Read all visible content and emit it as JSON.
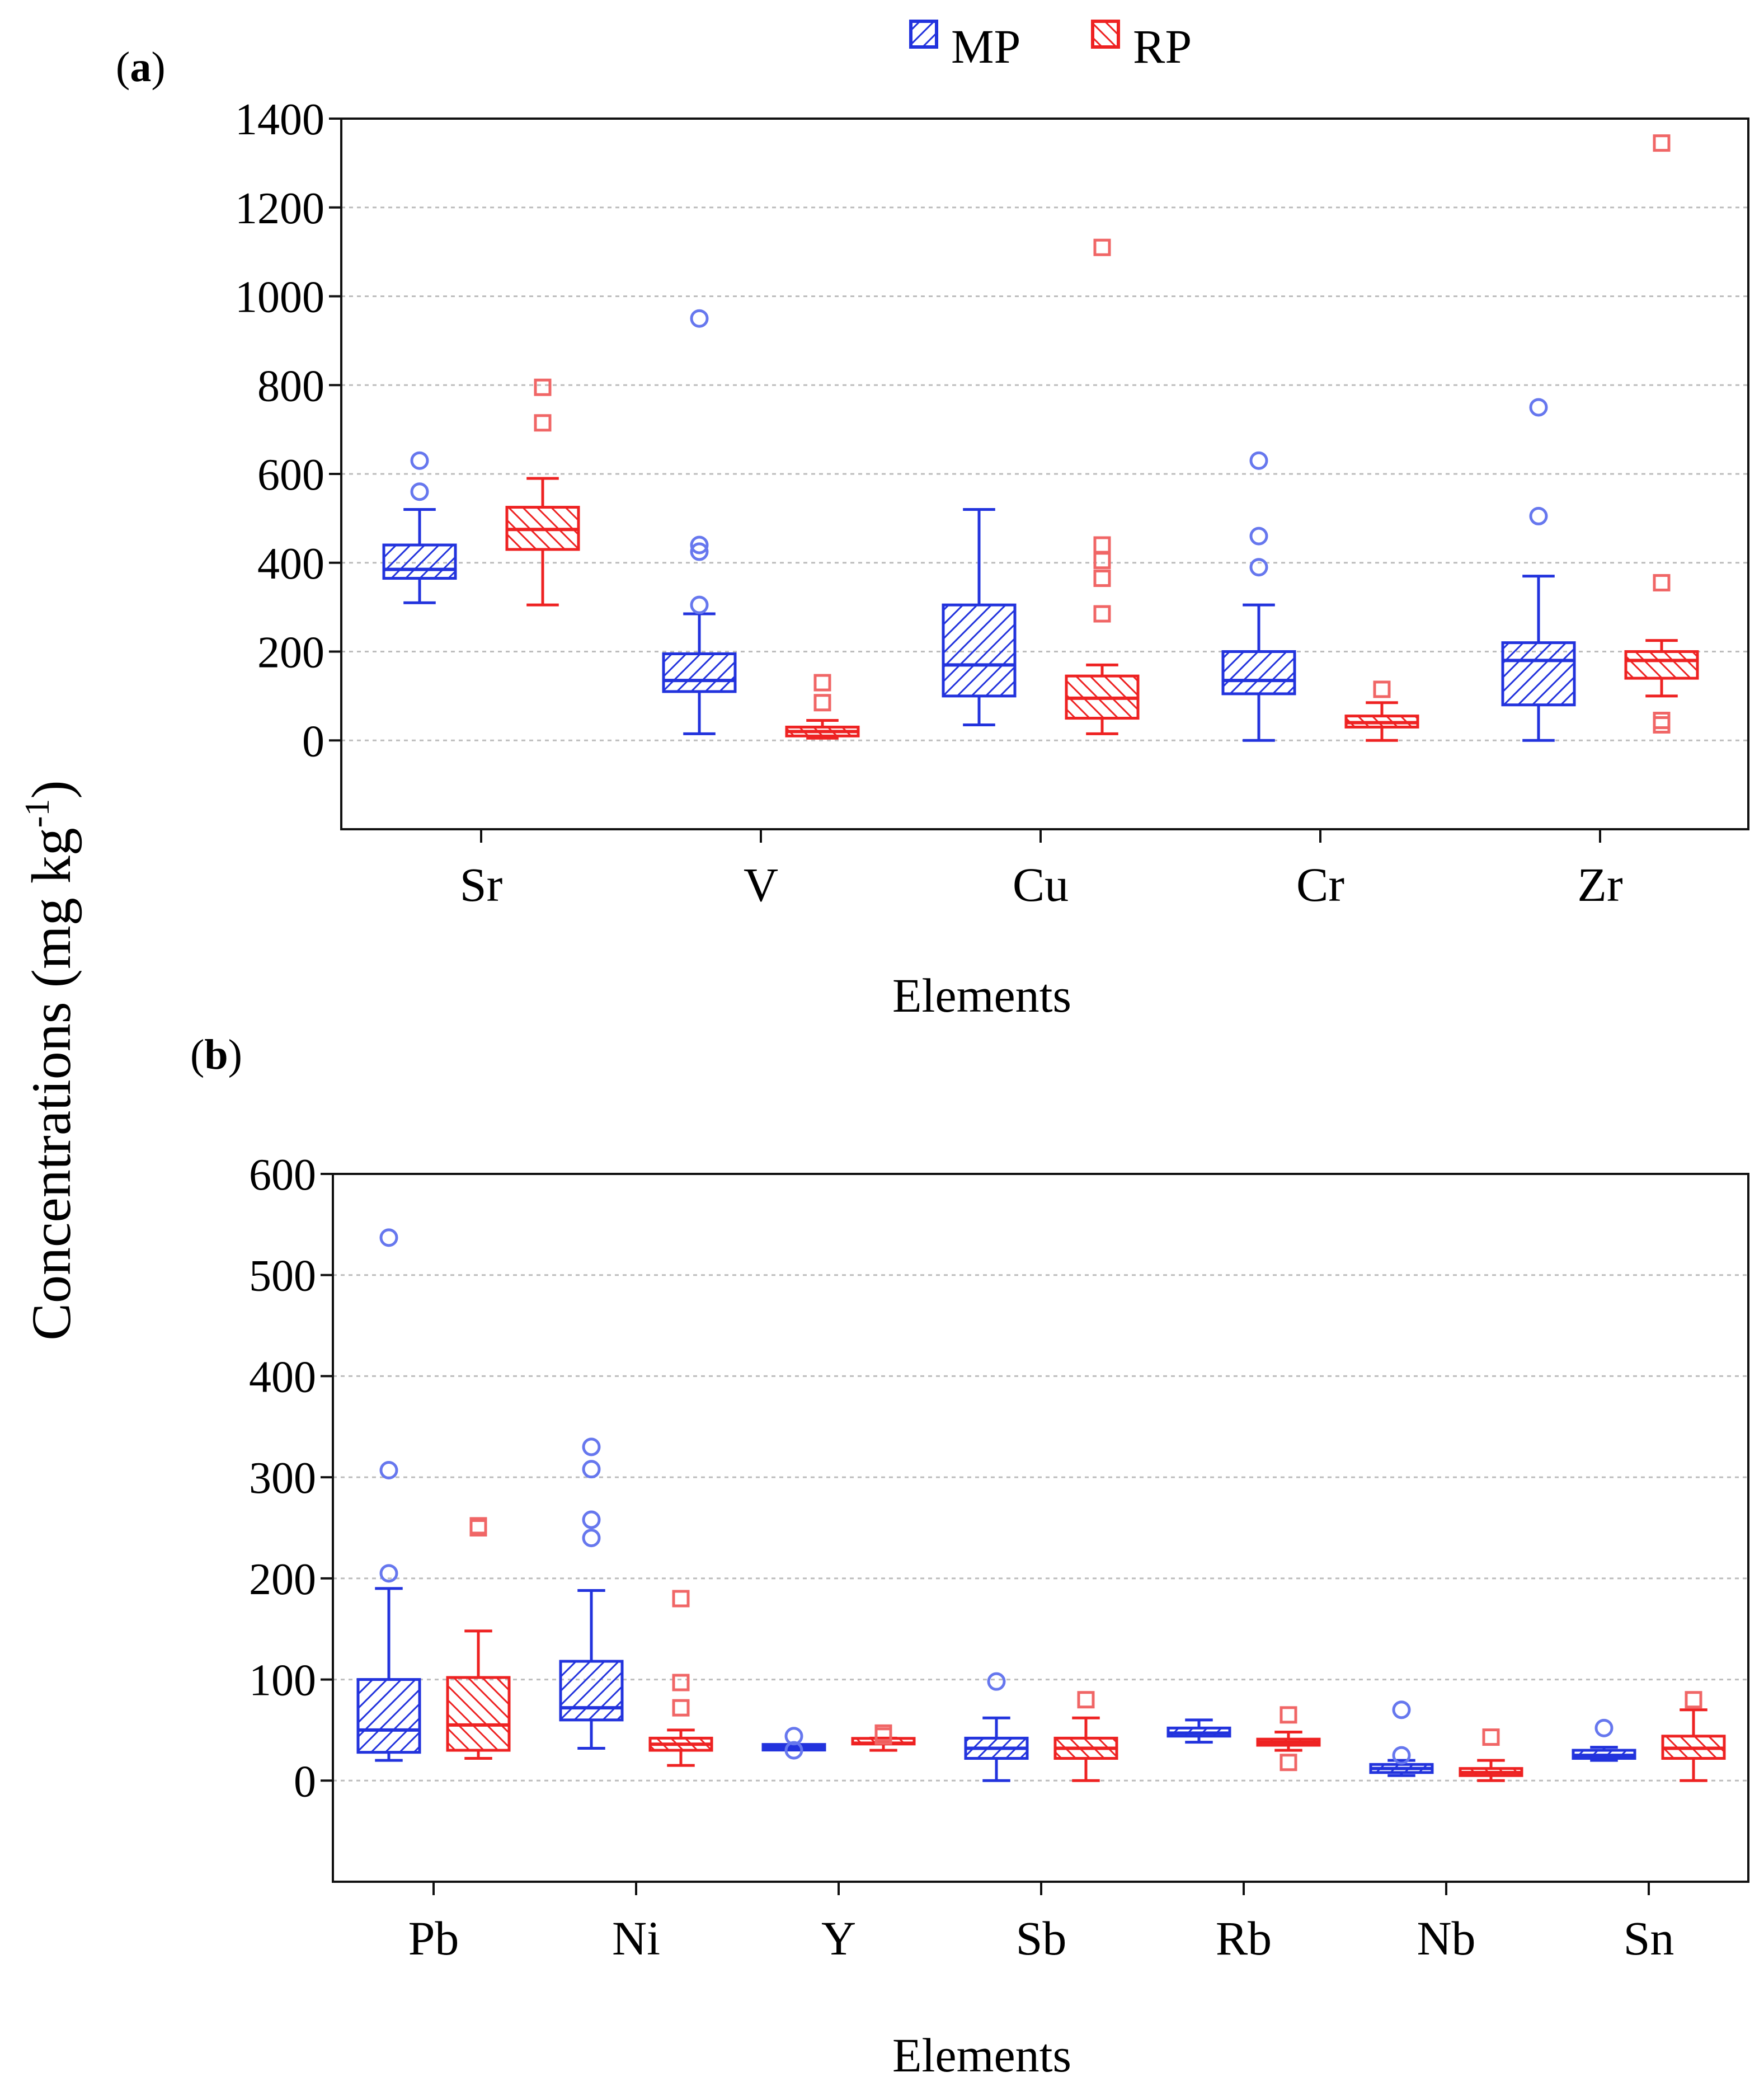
{
  "legend": [
    {
      "name": "MP",
      "color": "#2233dd"
    },
    {
      "name": "RP",
      "color": "#ee2222"
    }
  ],
  "y_axis_label": "Concentrations (mg kg",
  "y_axis_label_sup": "-1",
  "y_axis_label_close": ")",
  "chart_data": [
    {
      "panel_label_open": "(",
      "panel_label": "a",
      "panel_label_close": ")",
      "type": "box",
      "xlabel": "Elements",
      "ylim": [
        -200,
        1400
      ],
      "yticks": [
        0,
        200,
        400,
        600,
        800,
        1000,
        1200,
        1400
      ],
      "grid": true,
      "legend_position": "top-center",
      "categories": [
        "Sr",
        "V",
        "Cu",
        "Cr",
        "Zr"
      ],
      "series": [
        {
          "name": "MP",
          "color": "#2233dd",
          "boxes": [
            {
              "category": "Sr",
              "min": 310,
              "q1": 365,
              "median": 385,
              "q3": 440,
              "max": 520,
              "outliers": [
                560,
                630
              ]
            },
            {
              "category": "V",
              "min": 15,
              "q1": 110,
              "median": 135,
              "q3": 195,
              "max": 285,
              "outliers": [
                305,
                425,
                440,
                950
              ]
            },
            {
              "category": "Cu",
              "min": 35,
              "q1": 100,
              "median": 170,
              "q3": 305,
              "max": 520,
              "outliers": []
            },
            {
              "category": "Cr",
              "min": 0,
              "q1": 105,
              "median": 135,
              "q3": 200,
              "max": 305,
              "outliers": [
                390,
                460,
                630
              ]
            },
            {
              "category": "Zr",
              "min": 0,
              "q1": 80,
              "median": 180,
              "q3": 220,
              "max": 370,
              "outliers": [
                505,
                750
              ]
            }
          ]
        },
        {
          "name": "RP",
          "color": "#ee2222",
          "boxes": [
            {
              "category": "Sr",
              "min": 305,
              "q1": 430,
              "median": 475,
              "q3": 525,
              "max": 590,
              "outliers": [
                715,
                795
              ]
            },
            {
              "category": "V",
              "min": 5,
              "q1": 10,
              "median": 20,
              "q3": 30,
              "max": 45,
              "outliers": [
                85,
                130
              ]
            },
            {
              "category": "Cu",
              "min": 15,
              "q1": 50,
              "median": 95,
              "q3": 145,
              "max": 170,
              "outliers": [
                285,
                365,
                405,
                440,
                1110
              ]
            },
            {
              "category": "Cr",
              "min": 0,
              "q1": 30,
              "median": 40,
              "q3": 55,
              "max": 85,
              "outliers": [
                115
              ]
            },
            {
              "category": "Zr",
              "min": 100,
              "q1": 140,
              "median": 180,
              "q3": 200,
              "max": 225,
              "outliers": [
                35,
                45,
                355,
                1345
              ]
            }
          ]
        }
      ]
    },
    {
      "panel_label_open": "(",
      "panel_label": "b",
      "panel_label_close": ")",
      "type": "box",
      "xlabel": "Elements",
      "ylim": [
        -100,
        600
      ],
      "yticks": [
        0,
        100,
        200,
        300,
        400,
        500,
        600
      ],
      "grid": true,
      "categories": [
        "Pb",
        "Ni",
        "Y",
        "Sb",
        "Rb",
        "Nb",
        "Sn"
      ],
      "series": [
        {
          "name": "MP",
          "color": "#2233dd",
          "boxes": [
            {
              "category": "Pb",
              "min": 20,
              "q1": 28,
              "median": 50,
              "q3": 100,
              "max": 190,
              "outliers": [
                205,
                307,
                537
              ]
            },
            {
              "category": "Ni",
              "min": 32,
              "q1": 60,
              "median": 72,
              "q3": 118,
              "max": 188,
              "outliers": [
                240,
                258,
                308,
                330
              ]
            },
            {
              "category": "Y",
              "min": 33,
              "q1": 33,
              "median": 33,
              "q3": 33,
              "max": 33,
              "outliers": [
                30,
                44
              ]
            },
            {
              "category": "Sb",
              "min": 0,
              "q1": 22,
              "median": 32,
              "q3": 42,
              "max": 62,
              "outliers": [
                98
              ]
            },
            {
              "category": "Rb",
              "min": 38,
              "q1": 44,
              "median": 47,
              "q3": 52,
              "max": 60,
              "outliers": []
            },
            {
              "category": "Nb",
              "min": 5,
              "q1": 8,
              "median": 12,
              "q3": 16,
              "max": 20,
              "outliers": [
                25,
                70
              ]
            },
            {
              "category": "Sn",
              "min": 20,
              "q1": 22,
              "median": 25,
              "q3": 30,
              "max": 33,
              "outliers": [
                52
              ]
            }
          ]
        },
        {
          "name": "RP",
          "color": "#ee2222",
          "boxes": [
            {
              "category": "Pb",
              "min": 22,
              "q1": 30,
              "median": 55,
              "q3": 102,
              "max": 148,
              "outliers": [
                250,
                252
              ]
            },
            {
              "category": "Ni",
              "min": 15,
              "q1": 30,
              "median": 36,
              "q3": 42,
              "max": 50,
              "outliers": [
                72,
                97,
                180
              ]
            },
            {
              "category": "Y",
              "min": 30,
              "q1": 35,
              "median": 37,
              "q3": 39,
              "max": 42,
              "outliers": [
                44,
                47
              ]
            },
            {
              "category": "Sb",
              "min": 0,
              "q1": 22,
              "median": 32,
              "q3": 42,
              "max": 62,
              "outliers": [
                80
              ]
            },
            {
              "category": "Rb",
              "min": 30,
              "q1": 35,
              "median": 38,
              "q3": 41,
              "max": 48,
              "outliers": [
                18,
                65
              ]
            },
            {
              "category": "Nb",
              "min": 0,
              "q1": 5,
              "median": 8,
              "q3": 12,
              "max": 20,
              "outliers": [
                43
              ]
            },
            {
              "category": "Sn",
              "min": 0,
              "q1": 22,
              "median": 32,
              "q3": 44,
              "max": 70,
              "outliers": [
                80
              ]
            }
          ]
        }
      ]
    }
  ]
}
